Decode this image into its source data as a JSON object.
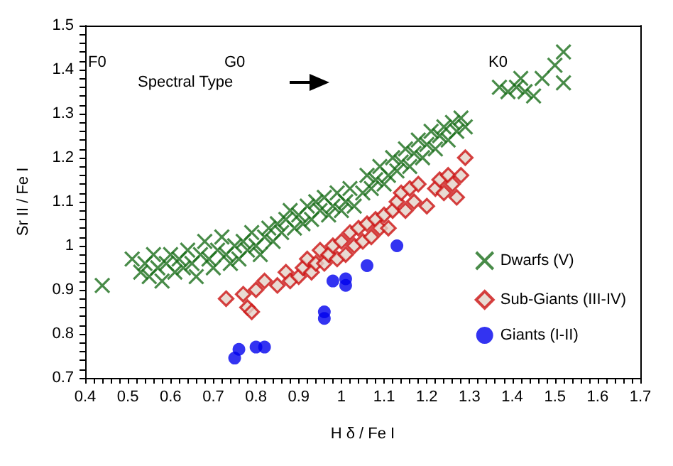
{
  "chart_data": {
    "type": "scatter",
    "xlabel": "H δ / Fe I",
    "ylabel": "Sr II / Fe I",
    "xlim": [
      0.4,
      1.7
    ],
    "xticks": [
      0.4,
      0.5,
      0.6,
      0.7,
      0.8,
      0.9,
      1,
      1.1,
      1.2,
      1.3,
      1.4,
      1.5,
      1.6,
      1.7
    ],
    "ylim": [
      0.7,
      1.5
    ],
    "yticks": [
      0.7,
      0.8,
      0.9,
      1,
      1.1,
      1.2,
      1.3,
      1.4,
      1.5
    ],
    "grid": false,
    "legend": "right",
    "annotations": [
      "F0",
      "G0",
      "K0",
      "Spectral Type"
    ],
    "series": [
      {
        "name": "Dwarfs (V)",
        "color": "#1a6e1a",
        "marker": "cross",
        "x": [
          0.44,
          0.51,
          0.53,
          0.54,
          0.55,
          0.56,
          0.57,
          0.58,
          0.59,
          0.6,
          0.61,
          0.62,
          0.63,
          0.64,
          0.65,
          0.66,
          0.67,
          0.68,
          0.69,
          0.7,
          0.71,
          0.72,
          0.73,
          0.74,
          0.75,
          0.76,
          0.77,
          0.78,
          0.79,
          0.8,
          0.81,
          0.82,
          0.83,
          0.84,
          0.85,
          0.86,
          0.87,
          0.88,
          0.89,
          0.9,
          0.91,
          0.92,
          0.93,
          0.94,
          0.95,
          0.96,
          0.97,
          0.98,
          0.99,
          1,
          1.01,
          1.02,
          1.03,
          1.05,
          1.06,
          1.07,
          1.08,
          1.09,
          1.1,
          1.11,
          1.12,
          1.13,
          1.14,
          1.15,
          1.16,
          1.17,
          1.18,
          1.19,
          1.2,
          1.21,
          1.22,
          1.23,
          1.24,
          1.25,
          1.26,
          1.27,
          1.28,
          1.29,
          1.37,
          1.39,
          1.41,
          1.42,
          1.43,
          1.45,
          1.47,
          1.5,
          1.52,
          1.52
        ],
        "values": [
          0.91,
          0.97,
          0.94,
          0.96,
          0.93,
          0.98,
          0.95,
          0.92,
          0.96,
          0.98,
          0.94,
          0.97,
          0.95,
          0.99,
          0.96,
          0.93,
          0.98,
          1.01,
          0.97,
          0.95,
          0.99,
          1.02,
          0.98,
          0.96,
          1,
          0.97,
          1.01,
          0.99,
          1.03,
          1,
          0.98,
          1.02,
          1.04,
          1.01,
          1.05,
          1.03,
          1.06,
          1.08,
          1.04,
          1.07,
          1.05,
          1.09,
          1.06,
          1.1,
          1.08,
          1.11,
          1.07,
          1.09,
          1.12,
          1.08,
          1.1,
          1.13,
          1.09,
          1.12,
          1.16,
          1.13,
          1.15,
          1.18,
          1.14,
          1.16,
          1.2,
          1.17,
          1.19,
          1.22,
          1.18,
          1.21,
          1.24,
          1.2,
          1.23,
          1.26,
          1.22,
          1.25,
          1.27,
          1.24,
          1.28,
          1.26,
          1.29,
          1.27,
          1.36,
          1.35,
          1.36,
          1.38,
          1.35,
          1.34,
          1.38,
          1.41,
          1.44,
          1.37
        ]
      },
      {
        "name": "Sub-Giants (III-IV)",
        "color": "#cc1111",
        "marker": "diamond",
        "x": [
          0.73,
          0.77,
          0.78,
          0.79,
          0.8,
          0.82,
          0.85,
          0.87,
          0.88,
          0.9,
          0.91,
          0.92,
          0.93,
          0.94,
          0.95,
          0.96,
          0.97,
          0.98,
          0.99,
          1,
          1.01,
          1.02,
          1.03,
          1.04,
          1.05,
          1.06,
          1.07,
          1.08,
          1.09,
          1.1,
          1.11,
          1.12,
          1.13,
          1.14,
          1.15,
          1.16,
          1.17,
          1.18,
          1.2,
          1.22,
          1.23,
          1.24,
          1.25,
          1.26,
          1.27,
          1.28,
          1.29
        ],
        "values": [
          0.88,
          0.89,
          0.86,
          0.85,
          0.9,
          0.92,
          0.91,
          0.94,
          0.92,
          0.93,
          0.95,
          0.97,
          0.94,
          0.96,
          0.99,
          0.96,
          0.98,
          1,
          0.97,
          1.01,
          0.98,
          1.03,
          1,
          1.04,
          1.01,
          1.05,
          1.02,
          1.06,
          1.04,
          1.07,
          1.04,
          1.08,
          1.1,
          1.12,
          1.08,
          1.13,
          1.1,
          1.14,
          1.09,
          1.13,
          1.15,
          1.12,
          1.16,
          1.14,
          1.11,
          1.16,
          1.2
        ]
      },
      {
        "name": "Giants (I-II)",
        "color": "#0000ee",
        "marker": "circle",
        "x": [
          0.75,
          0.76,
          0.8,
          0.82,
          0.96,
          0.96,
          0.98,
          1.01,
          1.01,
          1.06,
          1.13
        ],
        "values": [
          0.745,
          0.765,
          0.77,
          0.77,
          0.85,
          0.835,
          0.92,
          0.91,
          0.925,
          0.955,
          1
        ]
      }
    ]
  }
}
